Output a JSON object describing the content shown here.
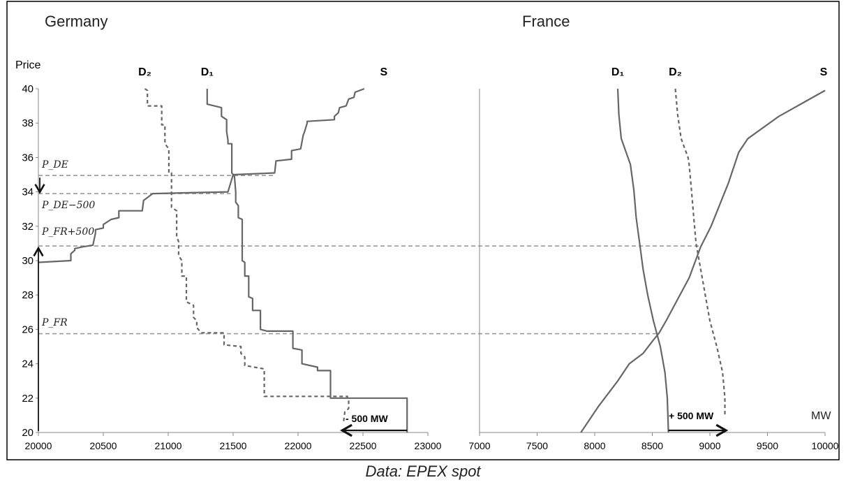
{
  "caption": "Data: EPEX spot",
  "colors": {
    "curve": "#666666",
    "guide": "#999999",
    "axis": "#888888",
    "arrow": "#111111",
    "frame": "#000000"
  },
  "chart_data": [
    {
      "type": "line",
      "title": "Germany",
      "ylabel": "Price",
      "xlim": [
        20000,
        23000
      ],
      "ylim": [
        20,
        40
      ],
      "xticks": [
        20000,
        20500,
        21000,
        21500,
        22000,
        22500,
        23000
      ],
      "yticks": [
        20,
        22,
        24,
        26,
        28,
        30,
        32,
        34,
        36,
        38,
        40
      ],
      "series": [
        {
          "name": "D₂",
          "style": "dashed",
          "points": [
            [
              20820,
              40
            ],
            [
              20840,
              39.9
            ],
            [
              20840,
              39
            ],
            [
              20950,
              39
            ],
            [
              20950,
              37.9
            ],
            [
              20975,
              37.9
            ],
            [
              20975,
              36.8
            ],
            [
              21005,
              36.5
            ],
            [
              21005,
              35.1
            ],
            [
              21025,
              35.1
            ],
            [
              21025,
              33.1
            ],
            [
              21065,
              32.9
            ],
            [
              21065,
              31.4
            ],
            [
              21080,
              31.1
            ],
            [
              21080,
              30.3
            ],
            [
              21105,
              30
            ],
            [
              21105,
              29.1
            ],
            [
              21140,
              29.1
            ],
            [
              21140,
              27.6
            ],
            [
              21195,
              27.4
            ],
            [
              21195,
              26.7
            ],
            [
              21220,
              26.5
            ],
            [
              21220,
              26.1
            ],
            [
              21255,
              25.8
            ],
            [
              21430,
              25.8
            ],
            [
              21430,
              25.1
            ],
            [
              21560,
              25
            ],
            [
              21560,
              24.6
            ],
            [
              21590,
              24.4
            ],
            [
              21590,
              23.9
            ],
            [
              21740,
              23.7
            ],
            [
              21740,
              22.1
            ],
            [
              22380,
              22.1
            ],
            [
              22380,
              22
            ],
            [
              22390,
              21.9
            ],
            [
              22390,
              21.4
            ],
            [
              22360,
              21.2
            ],
            [
              22350,
              20.6
            ]
          ]
        },
        {
          "name": "D₁",
          "style": "solid",
          "points": [
            [
              21300,
              40
            ],
            [
              21300,
              39.1
            ],
            [
              21410,
              38.9
            ],
            [
              21410,
              38.4
            ],
            [
              21450,
              38.2
            ],
            [
              21450,
              37.5
            ],
            [
              21460,
              37
            ],
            [
              21460,
              36.8
            ],
            [
              21490,
              36.8
            ],
            [
              21490,
              35.1
            ],
            [
              21510,
              34.9
            ],
            [
              21520,
              34
            ],
            [
              21520,
              33.4
            ],
            [
              21540,
              33.2
            ],
            [
              21540,
              32.5
            ],
            [
              21570,
              32.4
            ],
            [
              21570,
              30
            ],
            [
              21590,
              29.9
            ],
            [
              21590,
              29.1
            ],
            [
              21620,
              29.1
            ],
            [
              21620,
              27.9
            ],
            [
              21650,
              27.8
            ],
            [
              21650,
              27.1
            ],
            [
              21710,
              27.1
            ],
            [
              21710,
              26
            ],
            [
              21760,
              25.9
            ],
            [
              21960,
              25.9
            ],
            [
              21960,
              24.9
            ],
            [
              22030,
              24.8
            ],
            [
              22030,
              24
            ],
            [
              22150,
              23.8
            ],
            [
              22150,
              23.6
            ],
            [
              22250,
              23.6
            ],
            [
              22250,
              22
            ],
            [
              22840,
              22
            ],
            [
              22840,
              20
            ]
          ]
        },
        {
          "name": "S",
          "style": "solid",
          "points": [
            [
              20000,
              29.9
            ],
            [
              20250,
              30
            ],
            [
              20250,
              30.4
            ],
            [
              20280,
              30.6
            ],
            [
              20280,
              30.7
            ],
            [
              20340,
              30.8
            ],
            [
              20420,
              30.9
            ],
            [
              20440,
              31.6
            ],
            [
              20440,
              31.8
            ],
            [
              20500,
              31.9
            ],
            [
              20500,
              32.1
            ],
            [
              20560,
              32.4
            ],
            [
              20620,
              32.5
            ],
            [
              20620,
              32.9
            ],
            [
              20800,
              32.9
            ],
            [
              20810,
              33.5
            ],
            [
              20880,
              33.9
            ],
            [
              21460,
              34
            ],
            [
              21480,
              34.5
            ],
            [
              21500,
              35
            ],
            [
              21820,
              35.1
            ],
            [
              21830,
              35.8
            ],
            [
              21950,
              35.9
            ],
            [
              21950,
              36.4
            ],
            [
              22020,
              36.5
            ],
            [
              22040,
              37.3
            ],
            [
              22050,
              37.5
            ],
            [
              22070,
              38
            ],
            [
              22070,
              38.1
            ],
            [
              22280,
              38.2
            ],
            [
              22280,
              38.4
            ],
            [
              22310,
              38.6
            ],
            [
              22320,
              38.9
            ],
            [
              22370,
              39
            ],
            [
              22390,
              39.4
            ],
            [
              22430,
              39.5
            ],
            [
              22440,
              39.8
            ],
            [
              22510,
              40
            ]
          ]
        }
      ],
      "annotations": {
        "p_de": "P_DE",
        "p_de_500": "P_DE−500",
        "p_fr_500": "P_FR+500",
        "p_fr": "P_FR",
        "shift": "- 500 MW",
        "levels": {
          "p_de": 34.95,
          "p_de_500": 33.9,
          "p_fr_500": 30.85,
          "p_fr": 25.75
        },
        "shift_arrow": {
          "x_from": 22840,
          "x_to": 22340,
          "y": 20
        }
      }
    },
    {
      "type": "line",
      "title": "France",
      "xlabel": "MW",
      "xlim": [
        7000,
        10000
      ],
      "ylim": [
        20,
        40
      ],
      "xticks": [
        7000,
        7500,
        8000,
        8500,
        9000,
        9500,
        10000
      ],
      "series": [
        {
          "name": "D₁",
          "style": "solid",
          "points": [
            [
              8200,
              40
            ],
            [
              8210,
              38.5
            ],
            [
              8230,
              37.1
            ],
            [
              8310,
              35.6
            ],
            [
              8340,
              34.1
            ],
            [
              8360,
              32.5
            ],
            [
              8390,
              31
            ],
            [
              8420,
              29.5
            ],
            [
              8460,
              28
            ],
            [
              8510,
              26.5
            ],
            [
              8570,
              25
            ],
            [
              8610,
              23.5
            ],
            [
              8630,
              22
            ],
            [
              8640,
              20
            ]
          ]
        },
        {
          "name": "D₂",
          "style": "dashed",
          "points": [
            [
              8700,
              40
            ],
            [
              8720,
              38.5
            ],
            [
              8750,
              37.1
            ],
            [
              8810,
              36
            ],
            [
              8820,
              35.6
            ],
            [
              8840,
              34.1
            ],
            [
              8860,
              32.5
            ],
            [
              8880,
              31
            ],
            [
              8920,
              29.5
            ],
            [
              8960,
              28
            ],
            [
              9000,
              26.5
            ],
            [
              9060,
              25
            ],
            [
              9110,
              23.5
            ],
            [
              9130,
              22
            ],
            [
              9130,
              20.9
            ]
          ]
        },
        {
          "name": "S",
          "style": "solid",
          "points": [
            [
              7880,
              20
            ],
            [
              8030,
              21.5
            ],
            [
              8200,
              23
            ],
            [
              8300,
              24
            ],
            [
              8420,
              24.6
            ],
            [
              8500,
              25.3
            ],
            [
              8560,
              25.8
            ],
            [
              8620,
              26.5
            ],
            [
              8700,
              27.5
            ],
            [
              8820,
              29
            ],
            [
              8920,
              30.8
            ],
            [
              9010,
              32
            ],
            [
              9160,
              34.5
            ],
            [
              9250,
              36.3
            ],
            [
              9270,
              36.5
            ],
            [
              9330,
              37.1
            ],
            [
              9600,
              38.4
            ],
            [
              10000,
              39.9
            ]
          ]
        }
      ],
      "annotations": {
        "shift": "+ 500 MW",
        "shift_arrow": {
          "x_from": 8640,
          "x_to": 9140,
          "y": 20
        }
      }
    }
  ]
}
